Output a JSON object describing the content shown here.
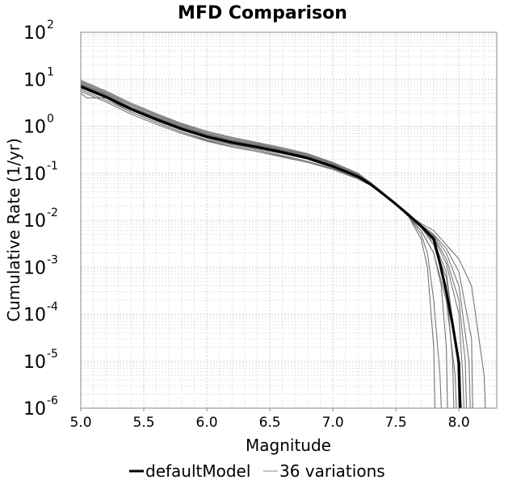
{
  "chart_data": {
    "type": "line",
    "title": "MFD Comparison",
    "xlabel": "Magnitude",
    "ylabel": "Cumulative Rate (1/yr)",
    "xlim": [
      5.0,
      8.3
    ],
    "ylim": [
      1e-06,
      100
    ],
    "y_scale": "log",
    "grid": true,
    "legend_position": "bottom",
    "x_ticks": [
      "5.0",
      "5.5",
      "6.0",
      "6.5",
      "7.0",
      "7.5",
      "8.0"
    ],
    "y_ticks": [
      {
        "base": "10",
        "exp": "2"
      },
      {
        "base": "10",
        "exp": "1"
      },
      {
        "base": "10",
        "exp": "0"
      },
      {
        "base": "10",
        "exp": "-1"
      },
      {
        "base": "10",
        "exp": "-2"
      },
      {
        "base": "10",
        "exp": "-3"
      },
      {
        "base": "10",
        "exp": "-4"
      },
      {
        "base": "10",
        "exp": "-5"
      },
      {
        "base": "10",
        "exp": "-6"
      }
    ],
    "series": [
      {
        "name": "defaultModel",
        "color": "#000000",
        "x": [
          5.0,
          5.2,
          5.4,
          5.6,
          5.8,
          6.0,
          6.2,
          6.4,
          6.6,
          6.8,
          7.0,
          7.2,
          7.3,
          7.4,
          7.5,
          7.6,
          7.7,
          7.8,
          7.85,
          7.9,
          7.95,
          8.0,
          8.01
        ],
        "y": [
          7,
          4.2,
          2.3,
          1.4,
          0.88,
          0.6,
          0.45,
          0.36,
          0.28,
          0.21,
          0.14,
          0.085,
          0.058,
          0.036,
          0.022,
          0.013,
          0.0075,
          0.004,
          0.0012,
          0.0003,
          6e-05,
          9e-06,
          1e-06
        ]
      },
      {
        "name": "36 variations",
        "color": "#777777",
        "lines": [
          {
            "x": [
              5.0,
              5.2,
              5.4,
              5.6,
              5.8,
              6.0,
              6.2,
              6.4,
              6.6,
              6.8,
              7.0,
              7.2,
              7.3,
              7.4,
              7.5,
              7.6,
              7.7,
              7.75,
              7.8,
              7.81
            ],
            "y": [
              5.5,
              3.3,
              1.8,
              1.1,
              0.7,
              0.48,
              0.36,
              0.29,
              0.23,
              0.17,
              0.12,
              0.075,
              0.055,
              0.035,
              0.022,
              0.012,
              0.004,
              0.001,
              2e-05,
              1e-06
            ]
          },
          {
            "x": [
              5.0,
              5.2,
              5.4,
              5.6,
              5.8,
              6.0,
              6.2,
              6.4,
              6.6,
              6.8,
              7.0,
              7.2,
              7.3,
              7.4,
              7.5,
              7.6,
              7.7,
              7.8,
              7.86,
              7.9,
              7.91
            ],
            "y": [
              6.5,
              4.0,
              2.2,
              1.3,
              0.82,
              0.56,
              0.42,
              0.33,
              0.26,
              0.2,
              0.13,
              0.08,
              0.057,
              0.036,
              0.022,
              0.013,
              0.006,
              0.002,
              0.0004,
              2e-05,
              1e-06
            ]
          },
          {
            "x": [
              5.0,
              5.2,
              5.4,
              5.6,
              5.8,
              6.0,
              6.2,
              6.4,
              6.6,
              6.8,
              7.0,
              7.2,
              7.3,
              7.4,
              7.5,
              7.6,
              7.7,
              7.8,
              7.9,
              7.95,
              7.96
            ],
            "y": [
              7.5,
              4.5,
              2.5,
              1.5,
              0.95,
              0.64,
              0.48,
              0.38,
              0.3,
              0.22,
              0.15,
              0.09,
              0.06,
              0.037,
              0.022,
              0.013,
              0.0075,
              0.003,
              0.0004,
              1e-05,
              1e-06
            ]
          },
          {
            "x": [
              5.0,
              5.2,
              5.4,
              5.6,
              5.8,
              6.0,
              6.2,
              6.4,
              6.6,
              6.8,
              7.0,
              7.2,
              7.3,
              7.4,
              7.5,
              7.6,
              7.7,
              7.8,
              7.9,
              8.0,
              8.05,
              8.06
            ],
            "y": [
              8.0,
              4.8,
              2.6,
              1.6,
              1.0,
              0.68,
              0.5,
              0.4,
              0.31,
              0.23,
              0.155,
              0.092,
              0.06,
              0.037,
              0.022,
              0.013,
              0.0075,
              0.0045,
              0.0015,
              0.0002,
              1e-05,
              1e-06
            ]
          },
          {
            "x": [
              5.0,
              5.2,
              5.4,
              5.6,
              5.8,
              6.0,
              6.2,
              6.4,
              6.6,
              6.8,
              7.0,
              7.2,
              7.3,
              7.4,
              7.5,
              7.6,
              7.7,
              7.8,
              7.9,
              8.0,
              8.1,
              8.11
            ],
            "y": [
              9.0,
              5.3,
              2.9,
              1.75,
              1.1,
              0.74,
              0.55,
              0.43,
              0.33,
              0.25,
              0.165,
              0.097,
              0.062,
              0.038,
              0.022,
              0.013,
              0.008,
              0.005,
              0.0025,
              0.0008,
              3e-05,
              1e-06
            ]
          },
          {
            "x": [
              5.0,
              5.2,
              5.4,
              5.6,
              5.8,
              6.0,
              6.2,
              6.4,
              6.6,
              6.8,
              7.0,
              7.2,
              7.3,
              7.4,
              7.5,
              7.6,
              7.7,
              7.8,
              7.9,
              8.0,
              8.1,
              8.2,
              8.21
            ],
            "y": [
              9.5,
              5.6,
              3.1,
              1.85,
              1.15,
              0.78,
              0.58,
              0.45,
              0.35,
              0.26,
              0.17,
              0.1,
              0.063,
              0.038,
              0.022,
              0.013,
              0.0085,
              0.006,
              0.003,
              0.0015,
              0.0004,
              5e-06,
              1e-06
            ]
          },
          {
            "x": [
              5.0,
              5.05,
              5.2,
              5.4,
              5.6,
              5.8,
              6.0,
              6.2,
              6.4,
              6.6,
              6.8,
              7.0,
              7.2,
              7.3,
              7.4,
              7.5,
              7.6,
              7.7,
              7.8,
              7.9,
              7.97,
              7.98
            ],
            "y": [
              5.0,
              4.0,
              4.0,
              2.0,
              1.2,
              0.75,
              0.52,
              0.4,
              0.31,
              0.24,
              0.18,
              0.125,
              0.078,
              0.056,
              0.036,
              0.022,
              0.012,
              0.006,
              0.002,
              0.0002,
              5e-06,
              1e-06
            ]
          },
          {
            "x": [
              5.0,
              5.2,
              5.4,
              5.6,
              5.8,
              6.0,
              6.2,
              6.4,
              6.6,
              6.8,
              7.0,
              7.2,
              7.3,
              7.4,
              7.5,
              7.6,
              7.7,
              7.8,
              7.9,
              8.0,
              8.02
            ],
            "y": [
              6.0,
              3.6,
              2.0,
              1.2,
              0.75,
              0.5,
              0.37,
              0.29,
              0.22,
              0.17,
              0.12,
              0.078,
              0.056,
              0.036,
              0.022,
              0.013,
              0.007,
              0.003,
              0.0006,
              1e-05,
              1e-06
            ]
          },
          {
            "x": [
              5.0,
              5.2,
              5.4,
              5.6,
              5.8,
              6.0,
              6.2,
              6.4,
              6.6,
              6.8,
              7.0,
              7.2,
              7.3,
              7.4,
              7.5,
              7.6,
              7.7,
              7.8,
              7.9,
              8.0,
              8.08,
              8.09
            ],
            "y": [
              8.5,
              5.0,
              2.8,
              1.7,
              1.05,
              0.7,
              0.52,
              0.41,
              0.32,
              0.24,
              0.16,
              0.094,
              0.061,
              0.037,
              0.022,
              0.013,
              0.008,
              0.0048,
              0.002,
              0.0004,
              1e-05,
              1e-06
            ]
          },
          {
            "x": [
              5.0,
              5.2,
              5.4,
              5.6,
              5.8,
              6.0,
              6.2,
              6.4,
              6.6,
              6.8,
              7.0,
              7.2,
              7.3,
              7.4,
              7.5,
              7.6,
              7.7,
              7.75,
              7.8,
              7.85,
              7.86
            ],
            "y": [
              7.0,
              4.2,
              2.3,
              1.4,
              0.85,
              0.58,
              0.44,
              0.35,
              0.27,
              0.2,
              0.135,
              0.083,
              0.058,
              0.036,
              0.022,
              0.012,
              0.005,
              0.002,
              0.0002,
              5e-06,
              1e-06
            ]
          },
          {
            "x": [
              5.0,
              5.2,
              5.4,
              5.6,
              5.8,
              6.0,
              6.2,
              6.4,
              6.6,
              6.8,
              7.0,
              7.2,
              7.3,
              7.4,
              7.5,
              7.6,
              7.7,
              7.8,
              7.9,
              7.99,
              8.0
            ],
            "y": [
              6.8,
              4.1,
              2.25,
              1.35,
              0.84,
              0.57,
              0.43,
              0.34,
              0.27,
              0.2,
              0.135,
              0.083,
              0.058,
              0.036,
              0.022,
              0.013,
              0.0072,
              0.0035,
              0.0008,
              1e-05,
              1e-06
            ]
          },
          {
            "x": [
              5.0,
              5.2,
              5.4,
              5.6,
              5.8,
              6.0,
              6.2,
              6.4,
              6.6,
              6.8,
              7.0,
              7.2,
              7.3,
              7.4,
              7.5,
              7.6,
              7.7,
              7.8,
              7.9,
              8.0,
              8.03,
              8.04
            ],
            "y": [
              7.8,
              4.6,
              2.55,
              1.55,
              0.97,
              0.66,
              0.49,
              0.39,
              0.3,
              0.225,
              0.15,
              0.09,
              0.06,
              0.037,
              0.022,
              0.013,
              0.0078,
              0.0042,
              0.0012,
              0.0001,
              5e-06,
              1e-06
            ]
          }
        ]
      }
    ]
  }
}
